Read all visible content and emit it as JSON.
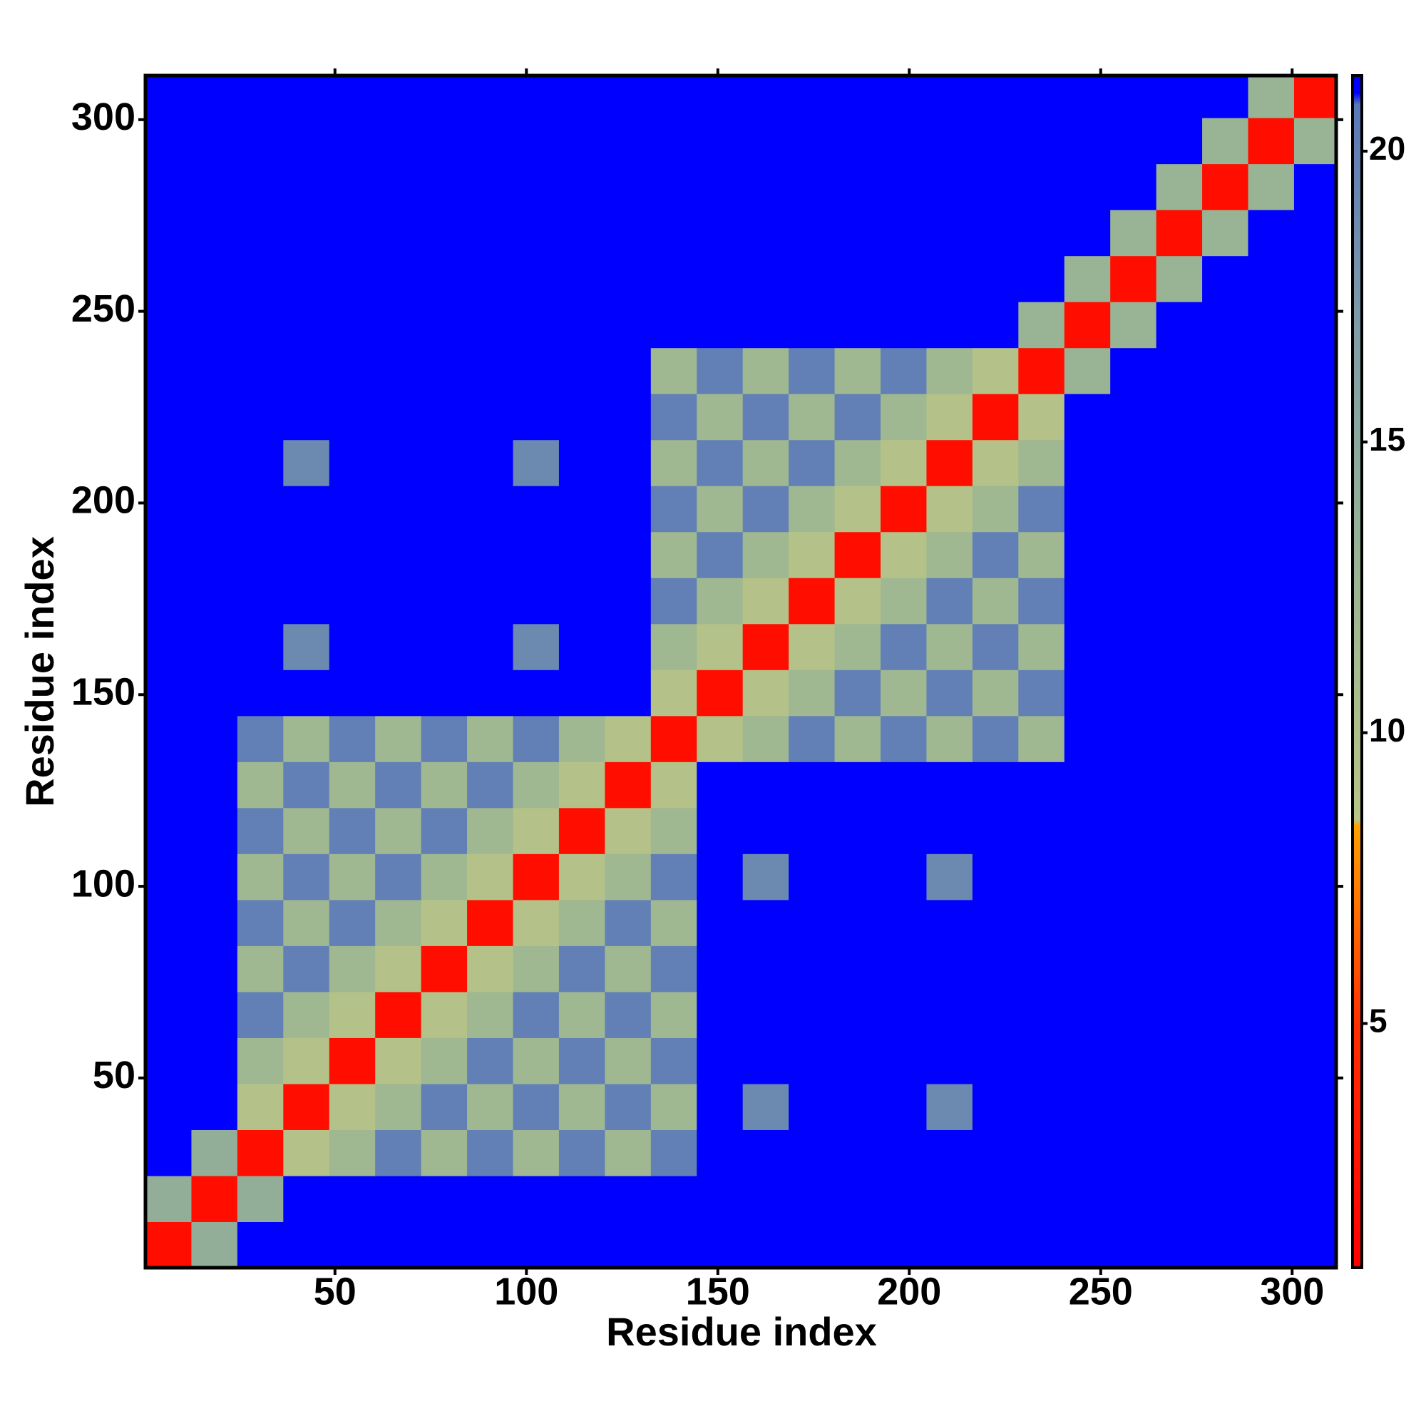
{
  "chart_data": {
    "type": "heatmap",
    "xlabel": "Residue index",
    "ylabel": "Residue index",
    "x": [
      6.5,
      18.5,
      30.5,
      42.5,
      54.5,
      66.5,
      78.5,
      90.5,
      102.5,
      114.5,
      126.5,
      138.5,
      150.5,
      162.5,
      174.5,
      186.5,
      198.5,
      210.5,
      222.5,
      234.5,
      246.5,
      258.5,
      270.5,
      282.5,
      294.5,
      306.5
    ],
    "y": [
      6.5,
      18.5,
      30.5,
      42.5,
      54.5,
      66.5,
      78.5,
      90.5,
      102.5,
      114.5,
      126.5,
      138.5,
      150.5,
      162.5,
      174.5,
      186.5,
      198.5,
      210.5,
      222.5,
      234.5,
      246.5,
      258.5,
      270.5,
      282.5,
      294.5,
      306.5
    ],
    "z": [
      [
        2,
        14,
        21,
        21,
        21,
        21,
        21,
        21,
        21,
        21,
        21,
        21,
        21,
        21,
        21,
        21,
        21,
        21,
        21,
        21,
        21,
        21,
        21,
        21,
        21,
        21
      ],
      [
        14,
        2,
        14,
        21,
        21,
        21,
        21,
        21,
        21,
        21,
        21,
        21,
        21,
        21,
        21,
        21,
        21,
        21,
        21,
        21,
        21,
        21,
        21,
        21,
        21,
        21
      ],
      [
        21,
        14,
        2,
        9,
        12,
        20,
        12,
        20,
        12,
        20,
        12,
        20,
        21,
        21,
        21,
        21,
        21,
        21,
        21,
        21,
        21,
        21,
        21,
        21,
        21,
        21
      ],
      [
        21,
        21,
        9,
        2,
        9,
        12,
        20,
        12,
        20,
        12,
        20,
        12,
        21,
        19,
        21,
        21,
        21,
        19,
        21,
        21,
        21,
        21,
        21,
        21,
        21,
        21
      ],
      [
        21,
        21,
        12,
        9,
        2,
        9,
        12,
        20,
        12,
        20,
        12,
        20,
        21,
        21,
        21,
        21,
        21,
        21,
        21,
        21,
        21,
        21,
        21,
        21,
        21,
        21
      ],
      [
        21,
        21,
        20,
        12,
        9,
        2,
        9,
        12,
        20,
        12,
        20,
        12,
        21,
        21,
        21,
        21,
        21,
        21,
        21,
        21,
        21,
        21,
        21,
        21,
        21,
        21
      ],
      [
        21,
        21,
        12,
        20,
        12,
        9,
        2,
        9,
        12,
        20,
        12,
        20,
        21,
        21,
        21,
        21,
        21,
        21,
        21,
        21,
        21,
        21,
        21,
        21,
        21,
        21
      ],
      [
        21,
        21,
        20,
        12,
        20,
        12,
        9,
        2,
        9,
        12,
        20,
        12,
        21,
        21,
        21,
        21,
        21,
        21,
        21,
        21,
        21,
        21,
        21,
        21,
        21,
        21
      ],
      [
        21,
        21,
        12,
        20,
        12,
        20,
        12,
        9,
        2,
        9,
        12,
        20,
        21,
        19,
        21,
        21,
        21,
        19,
        21,
        21,
        21,
        21,
        21,
        21,
        21,
        21
      ],
      [
        21,
        21,
        20,
        12,
        20,
        12,
        20,
        12,
        9,
        2,
        9,
        12,
        21,
        21,
        21,
        21,
        21,
        21,
        21,
        21,
        21,
        21,
        21,
        21,
        21,
        21
      ],
      [
        21,
        21,
        12,
        20,
        12,
        20,
        12,
        20,
        12,
        9,
        2,
        9,
        21,
        21,
        21,
        21,
        21,
        21,
        21,
        21,
        21,
        21,
        21,
        21,
        21,
        21
      ],
      [
        21,
        21,
        20,
        12,
        20,
        12,
        20,
        12,
        20,
        12,
        9,
        2,
        9,
        12,
        20,
        12,
        20,
        12,
        20,
        12,
        21,
        21,
        21,
        21,
        21,
        21
      ],
      [
        21,
        21,
        21,
        21,
        21,
        21,
        21,
        21,
        21,
        21,
        21,
        9,
        2,
        9,
        12,
        20,
        12,
        20,
        12,
        20,
        21,
        21,
        21,
        21,
        21,
        21
      ],
      [
        21,
        21,
        21,
        19,
        21,
        21,
        21,
        21,
        19,
        21,
        21,
        12,
        9,
        2,
        9,
        12,
        20,
        12,
        20,
        12,
        21,
        21,
        21,
        21,
        21,
        21
      ],
      [
        21,
        21,
        21,
        21,
        21,
        21,
        21,
        21,
        21,
        21,
        21,
        20,
        12,
        9,
        2,
        9,
        12,
        20,
        12,
        20,
        21,
        21,
        21,
        21,
        21,
        21
      ],
      [
        21,
        21,
        21,
        21,
        21,
        21,
        21,
        21,
        21,
        21,
        21,
        12,
        20,
        12,
        9,
        2,
        9,
        12,
        20,
        12,
        21,
        21,
        21,
        21,
        21,
        21
      ],
      [
        21,
        21,
        21,
        21,
        21,
        21,
        21,
        21,
        21,
        21,
        21,
        20,
        12,
        20,
        12,
        9,
        2,
        9,
        12,
        20,
        21,
        21,
        21,
        21,
        21,
        21
      ],
      [
        21,
        21,
        21,
        19,
        21,
        21,
        21,
        21,
        19,
        21,
        21,
        12,
        20,
        12,
        20,
        12,
        9,
        2,
        9,
        12,
        21,
        21,
        21,
        21,
        21,
        21
      ],
      [
        21,
        21,
        21,
        21,
        21,
        21,
        21,
        21,
        21,
        21,
        21,
        20,
        12,
        20,
        12,
        20,
        12,
        9,
        2,
        9,
        21,
        21,
        21,
        21,
        21,
        21
      ],
      [
        21,
        21,
        21,
        21,
        21,
        21,
        21,
        21,
        21,
        21,
        21,
        12,
        20,
        12,
        20,
        12,
        20,
        12,
        9,
        2,
        13,
        21,
        21,
        21,
        21,
        21
      ],
      [
        21,
        21,
        21,
        21,
        21,
        21,
        21,
        21,
        21,
        21,
        21,
        21,
        21,
        21,
        21,
        21,
        21,
        21,
        21,
        13,
        2,
        13,
        21,
        21,
        21,
        21
      ],
      [
        21,
        21,
        21,
        21,
        21,
        21,
        21,
        21,
        21,
        21,
        21,
        21,
        21,
        21,
        21,
        21,
        21,
        21,
        21,
        21,
        13,
        2,
        13,
        21,
        21,
        21
      ],
      [
        21,
        21,
        21,
        21,
        21,
        21,
        21,
        21,
        21,
        21,
        21,
        21,
        21,
        21,
        21,
        21,
        21,
        21,
        21,
        21,
        21,
        13,
        2,
        13,
        21,
        21
      ],
      [
        21,
        21,
        21,
        21,
        21,
        21,
        21,
        21,
        21,
        21,
        21,
        21,
        21,
        21,
        21,
        21,
        21,
        21,
        21,
        21,
        21,
        21,
        13,
        2,
        13,
        21
      ],
      [
        21,
        21,
        21,
        21,
        21,
        21,
        21,
        21,
        21,
        21,
        21,
        21,
        21,
        21,
        21,
        21,
        21,
        21,
        21,
        21,
        21,
        21,
        21,
        13,
        2,
        13
      ],
      [
        21,
        21,
        21,
        21,
        21,
        21,
        21,
        21,
        21,
        21,
        21,
        21,
        21,
        21,
        21,
        21,
        21,
        21,
        21,
        21,
        21,
        21,
        21,
        21,
        13,
        2
      ]
    ],
    "xlim": [
      0.5,
      311.5
    ],
    "ylim": [
      0.5,
      311.5
    ],
    "xticks": [
      50,
      100,
      150,
      200,
      250,
      300
    ],
    "yticks": [
      50,
      100,
      150,
      200,
      250,
      300
    ],
    "zlim": [
      0.8,
      21.3
    ],
    "zticks": [
      5,
      10,
      15,
      20
    ],
    "colormap": [
      {
        "value": 0.8,
        "color": "#ff0000"
      },
      {
        "value": 5,
        "color": "#ff3000"
      },
      {
        "value": 8.4,
        "color": "#ffa000"
      },
      {
        "value": 8.5,
        "color": "#b8c488"
      },
      {
        "value": 13,
        "color": "#98b494"
      },
      {
        "value": 17,
        "color": "#7f9ca8"
      },
      {
        "value": 20.8,
        "color": "#5a78b8"
      },
      {
        "value": 21,
        "color": "#0000ff"
      },
      {
        "value": 21.3,
        "color": "#0000ff"
      }
    ]
  }
}
